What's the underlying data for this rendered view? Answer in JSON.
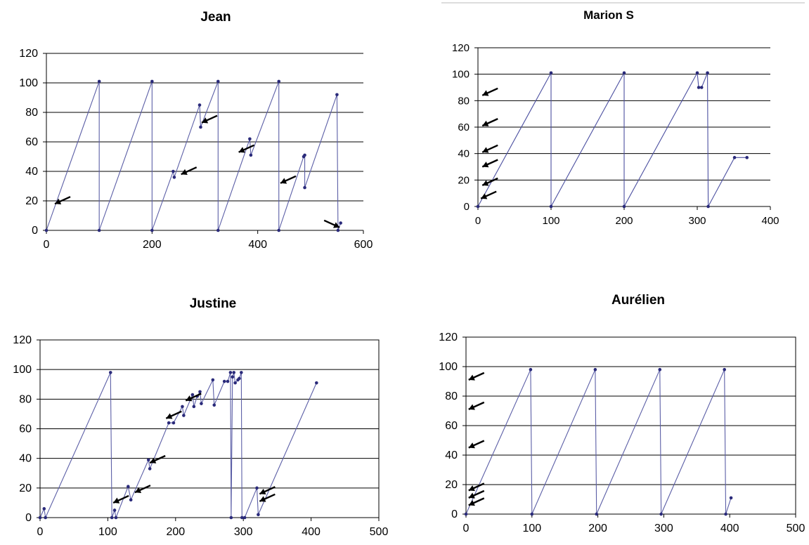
{
  "chart_data": [
    {
      "type": "line",
      "title": "Jean",
      "xlim": [
        0,
        600
      ],
      "ylim": [
        0,
        120
      ],
      "xticks": [
        "0",
        "200",
        "400",
        "600"
      ],
      "yticks": [
        "0",
        "20",
        "40",
        "60",
        "80",
        "100",
        "120"
      ],
      "grid": "horizontal",
      "series_color": "#5b5ea6",
      "points": [
        [
          0,
          0
        ],
        [
          100,
          101
        ],
        [
          100,
          0
        ],
        [
          200,
          101
        ],
        [
          200,
          0
        ],
        [
          240,
          40
        ],
        [
          242,
          36
        ],
        [
          290,
          85
        ],
        [
          292,
          70
        ],
        [
          325,
          101
        ],
        [
          325,
          0
        ],
        [
          385,
          62
        ],
        [
          387,
          51
        ],
        [
          440,
          101
        ],
        [
          440,
          0
        ],
        [
          487,
          50
        ],
        [
          489,
          51
        ],
        [
          489,
          29
        ],
        [
          550,
          92
        ],
        [
          552,
          0
        ],
        [
          557,
          5
        ]
      ],
      "arrows": [
        [
          16,
          18,
          "up-right"
        ],
        [
          255,
          38,
          "up-right"
        ],
        [
          294,
          73,
          "up-right"
        ],
        [
          364,
          53,
          "up-right"
        ],
        [
          443,
          32,
          "up-right"
        ],
        [
          555,
          2,
          "down-right"
        ]
      ]
    },
    {
      "type": "line",
      "title": "Marion S",
      "xlim": [
        0,
        400
      ],
      "ylim": [
        0,
        120
      ],
      "xticks": [
        "0",
        "100",
        "200",
        "300",
        "400"
      ],
      "yticks": [
        "0",
        "20",
        "40",
        "60",
        "80",
        "100",
        "120"
      ],
      "grid": "horizontal",
      "series_color": "#4b4fa0",
      "points": [
        [
          0,
          0
        ],
        [
          100,
          101
        ],
        [
          100,
          0
        ],
        [
          200,
          101
        ],
        [
          200,
          0
        ],
        [
          300,
          101
        ],
        [
          302,
          90
        ],
        [
          306,
          90
        ],
        [
          314,
          101
        ],
        [
          315,
          0
        ],
        [
          351,
          37
        ],
        [
          368,
          37
        ]
      ],
      "arrows": [
        [
          4,
          6,
          "up-right"
        ],
        [
          6,
          16,
          "up-right"
        ],
        [
          6,
          30,
          "up-right"
        ],
        [
          6,
          41,
          "up-right"
        ],
        [
          6,
          61,
          "up-right"
        ],
        [
          6,
          84,
          "up-right"
        ]
      ]
    },
    {
      "type": "line",
      "title": "Justine",
      "xlim": [
        0,
        500
      ],
      "ylim": [
        0,
        120
      ],
      "xticks": [
        "0",
        "100",
        "200",
        "300",
        "400",
        "500"
      ],
      "yticks": [
        "0",
        "20",
        "40",
        "60",
        "80",
        "100",
        "120"
      ],
      "grid": "horizontal",
      "series_color": "#5b5ea6",
      "points": [
        [
          0,
          0
        ],
        [
          6,
          6
        ],
        [
          8,
          0
        ],
        [
          104,
          98
        ],
        [
          106,
          0
        ],
        [
          110,
          5
        ],
        [
          112,
          0
        ],
        [
          130,
          21
        ],
        [
          134,
          12
        ],
        [
          160,
          39
        ],
        [
          162,
          33
        ],
        [
          190,
          64
        ],
        [
          197,
          64
        ],
        [
          210,
          75
        ],
        [
          212,
          69
        ],
        [
          225,
          83
        ],
        [
          227,
          75
        ],
        [
          232,
          82
        ],
        [
          236,
          85
        ],
        [
          238,
          77
        ],
        [
          255,
          93
        ],
        [
          257,
          76
        ],
        [
          272,
          92
        ],
        [
          277,
          92
        ],
        [
          281,
          98
        ],
        [
          282,
          0
        ],
        [
          284,
          95
        ],
        [
          286,
          98
        ],
        [
          288,
          91
        ],
        [
          292,
          93
        ],
        [
          294,
          94
        ],
        [
          297,
          98
        ],
        [
          298,
          0
        ],
        [
          302,
          0
        ],
        [
          320,
          20
        ],
        [
          322,
          2
        ],
        [
          408,
          91
        ]
      ],
      "arrows": [
        [
          108,
          10,
          "up-right"
        ],
        [
          140,
          17,
          "up-right"
        ],
        [
          162,
          37,
          "up-right"
        ],
        [
          186,
          67,
          "up-right"
        ],
        [
          215,
          79,
          "up-right"
        ],
        [
          324,
          16,
          "up-right"
        ],
        [
          324,
          11,
          "up-right"
        ]
      ]
    },
    {
      "type": "line",
      "title": "Aurélien",
      "xlim": [
        0,
        500
      ],
      "ylim": [
        0,
        120
      ],
      "xticks": [
        "0",
        "100",
        "200",
        "300",
        "400",
        "500"
      ],
      "yticks": [
        "0",
        "20",
        "40",
        "60",
        "80",
        "100",
        "120"
      ],
      "grid": "horizontal",
      "series_color": "#5b5ea6",
      "points": [
        [
          0,
          0
        ],
        [
          98,
          98
        ],
        [
          100,
          0
        ],
        [
          196,
          98
        ],
        [
          198,
          0
        ],
        [
          294,
          98
        ],
        [
          296,
          0
        ],
        [
          392,
          98
        ],
        [
          394,
          0
        ],
        [
          402,
          11
        ]
      ],
      "arrows": [
        [
          4,
          6,
          "up-right"
        ],
        [
          4,
          11,
          "up-right"
        ],
        [
          4,
          16,
          "up-right"
        ],
        [
          4,
          45,
          "up-right"
        ],
        [
          4,
          71,
          "up-right"
        ],
        [
          4,
          91,
          "up-right"
        ]
      ]
    }
  ]
}
